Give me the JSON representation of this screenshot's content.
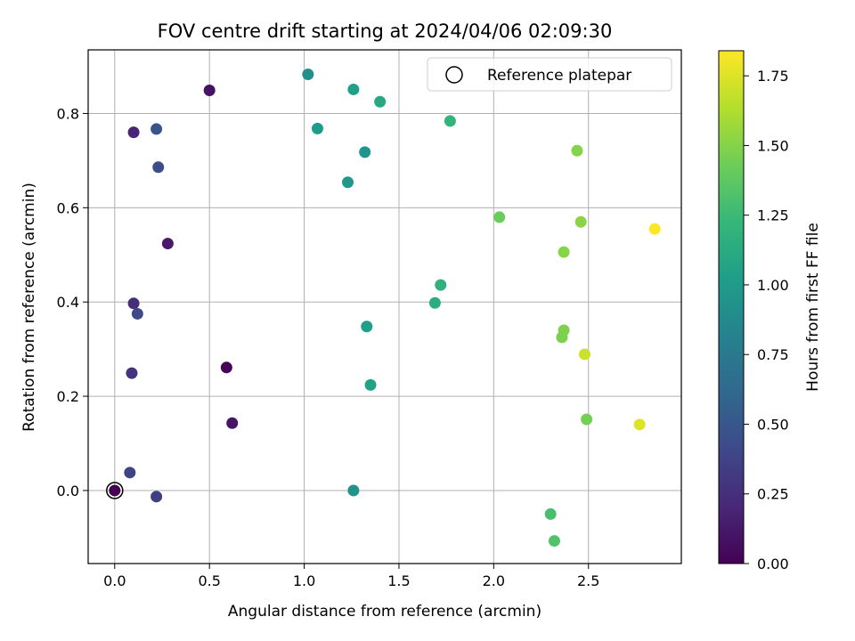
{
  "chart_data": {
    "type": "scatter",
    "title": "FOV centre drift starting at 2024/04/06 02:09:30",
    "xlabel": "Angular distance from reference (arcmin)",
    "ylabel": "Rotation from reference (arcmin)",
    "xlim": [
      -0.14,
      2.99
    ],
    "ylim": [
      -0.155,
      0.935
    ],
    "xticks": [
      "0.0",
      "0.5",
      "1.0",
      "1.5",
      "2.0",
      "2.5"
    ],
    "xtick_values": [
      0.0,
      0.5,
      1.0,
      1.5,
      2.0,
      2.5
    ],
    "yticks": [
      "0.0",
      "0.2",
      "0.4",
      "0.6",
      "0.8"
    ],
    "ytick_values": [
      0.0,
      0.2,
      0.4,
      0.6,
      0.8
    ],
    "grid": true,
    "legend": {
      "position": "top-right",
      "entries": [
        "Reference platepar"
      ]
    },
    "colorbar": {
      "label": "Hours from first FF file",
      "colormap": "viridis",
      "range": [
        0.0,
        1.84
      ],
      "ticks": [
        "0.00",
        "0.25",
        "0.50",
        "0.75",
        "1.00",
        "1.25",
        "1.50",
        "1.75"
      ],
      "tick_values": [
        0.0,
        0.25,
        0.5,
        0.75,
        1.0,
        1.25,
        1.5,
        1.75
      ]
    },
    "reference_point": {
      "x": 0.0,
      "y": 0.0
    },
    "points": [
      {
        "x": 0.0,
        "y": 0.0,
        "c": 0.0
      },
      {
        "x": 0.59,
        "y": 0.261,
        "c": 0.02
      },
      {
        "x": 0.5,
        "y": 0.849,
        "c": 0.09
      },
      {
        "x": 0.62,
        "y": 0.143,
        "c": 0.1
      },
      {
        "x": 0.28,
        "y": 0.524,
        "c": 0.13
      },
      {
        "x": 0.1,
        "y": 0.76,
        "c": 0.19
      },
      {
        "x": 0.1,
        "y": 0.397,
        "c": 0.24
      },
      {
        "x": 0.09,
        "y": 0.249,
        "c": 0.27
      },
      {
        "x": 0.22,
        "y": -0.013,
        "c": 0.35
      },
      {
        "x": 0.08,
        "y": 0.038,
        "c": 0.38
      },
      {
        "x": 0.12,
        "y": 0.375,
        "c": 0.41
      },
      {
        "x": 0.23,
        "y": 0.686,
        "c": 0.44
      },
      {
        "x": 0.22,
        "y": 0.767,
        "c": 0.48
      },
      {
        "x": 1.02,
        "y": 0.883,
        "c": 0.92
      },
      {
        "x": 1.26,
        "y": 0.0,
        "c": 0.94
      },
      {
        "x": 1.32,
        "y": 0.718,
        "c": 0.96
      },
      {
        "x": 1.23,
        "y": 0.654,
        "c": 0.98
      },
      {
        "x": 1.07,
        "y": 0.768,
        "c": 1.0
      },
      {
        "x": 1.33,
        "y": 0.348,
        "c": 1.02
      },
      {
        "x": 1.26,
        "y": 0.851,
        "c": 1.04
      },
      {
        "x": 1.35,
        "y": 0.224,
        "c": 1.06
      },
      {
        "x": 1.4,
        "y": 0.825,
        "c": 1.1
      },
      {
        "x": 1.69,
        "y": 0.398,
        "c": 1.14
      },
      {
        "x": 1.72,
        "y": 0.436,
        "c": 1.17
      },
      {
        "x": 1.77,
        "y": 0.784,
        "c": 1.2
      },
      {
        "x": 2.3,
        "y": -0.05,
        "c": 1.3
      },
      {
        "x": 2.32,
        "y": -0.107,
        "c": 1.33
      },
      {
        "x": 2.03,
        "y": 0.58,
        "c": 1.42
      },
      {
        "x": 2.49,
        "y": 0.151,
        "c": 1.45
      },
      {
        "x": 2.36,
        "y": 0.325,
        "c": 1.47
      },
      {
        "x": 2.37,
        "y": 0.34,
        "c": 1.48
      },
      {
        "x": 2.44,
        "y": 0.721,
        "c": 1.5
      },
      {
        "x": 2.37,
        "y": 0.506,
        "c": 1.51
      },
      {
        "x": 2.46,
        "y": 0.57,
        "c": 1.52
      },
      {
        "x": 2.48,
        "y": 0.289,
        "c": 1.7
      },
      {
        "x": 2.77,
        "y": 0.14,
        "c": 1.75
      },
      {
        "x": 2.85,
        "y": 0.555,
        "c": 1.84
      }
    ]
  }
}
